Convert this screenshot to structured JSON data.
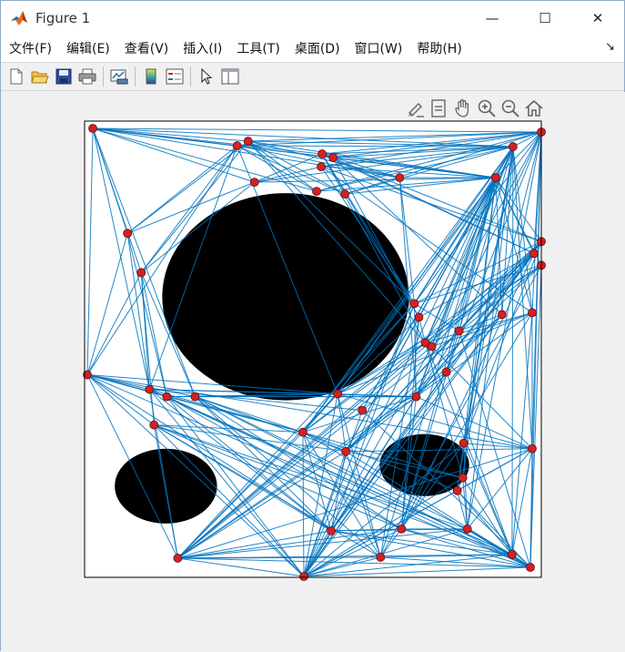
{
  "window": {
    "title": "Figure 1",
    "minimize_glyph": "—",
    "maximize_glyph": "☐",
    "close_glyph": "✕"
  },
  "menu": {
    "items": [
      "文件(F)",
      "编辑(E)",
      "查看(V)",
      "插入(I)",
      "工具(T)",
      "桌面(D)",
      "窗口(W)",
      "帮助(H)"
    ],
    "corner_glyph": "↘"
  },
  "toolbar": {
    "buttons": [
      "new-figure-icon",
      "open-file-icon",
      "save-icon",
      "print-icon",
      "link-plot-icon",
      "colorbar-icon",
      "legend-icon",
      "pointer-icon",
      "property-inspector-icon"
    ]
  },
  "axes_toolbar": {
    "buttons": [
      "brush-icon",
      "data-tips-icon",
      "pan-hand-icon",
      "zoom-in-icon",
      "zoom-out-icon",
      "home-icon"
    ]
  },
  "chart_data": {
    "type": "scatter",
    "title": "",
    "xlabel": "",
    "ylabel": "",
    "xlim": [
      0,
      100
    ],
    "ylim": [
      0,
      100
    ],
    "grid": false,
    "edge_color": "#0072bd",
    "node_color": "#d62020",
    "obstacles": [
      {
        "cx": 44.0,
        "cy": 61.5,
        "rx": 27.0,
        "ry": 22.7
      },
      {
        "cx": 17.8,
        "cy": 20.0,
        "rx": 11.2,
        "ry": 8.2
      },
      {
        "cx": 74.4,
        "cy": 24.6,
        "rx": 9.8,
        "ry": 6.8
      }
    ],
    "nodes": [
      [
        1.8,
        98.4
      ],
      [
        33.4,
        94.6
      ],
      [
        35.8,
        95.6
      ],
      [
        52.0,
        92.8
      ],
      [
        51.8,
        90.0
      ],
      [
        54.4,
        92.0
      ],
      [
        93.8,
        94.4
      ],
      [
        100,
        97.6
      ],
      [
        37.2,
        86.6
      ],
      [
        50.8,
        84.6
      ],
      [
        57.0,
        84.0
      ],
      [
        69.0,
        87.6
      ],
      [
        90.0,
        87.6
      ],
      [
        9.4,
        75.4
      ],
      [
        12.4,
        66.8
      ],
      [
        100,
        73.6
      ],
      [
        98.4,
        71.0
      ],
      [
        100,
        68.4
      ],
      [
        72.2,
        60.0
      ],
      [
        73.2,
        57.0
      ],
      [
        98.0,
        58.0
      ],
      [
        91.4,
        57.6
      ],
      [
        74.6,
        51.4
      ],
      [
        82.0,
        54.0
      ],
      [
        0.6,
        44.4
      ],
      [
        14.2,
        41.2
      ],
      [
        18.0,
        39.6
      ],
      [
        24.2,
        39.6
      ],
      [
        55.4,
        40.2
      ],
      [
        72.6,
        39.6
      ],
      [
        15.2,
        33.4
      ],
      [
        47.8,
        31.8
      ],
      [
        57.2,
        27.6
      ],
      [
        98.0,
        28.2
      ],
      [
        83.0,
        29.4
      ],
      [
        82.8,
        21.8
      ],
      [
        81.6,
        19.0
      ],
      [
        54.0,
        10.2
      ],
      [
        69.4,
        10.6
      ],
      [
        83.8,
        10.6
      ],
      [
        20.4,
        4.2
      ],
      [
        64.8,
        4.4
      ],
      [
        93.6,
        5.0
      ],
      [
        97.6,
        2.2
      ],
      [
        48.0,
        0.2
      ],
      [
        76.0,
        50.6
      ],
      [
        79.2,
        45.0
      ],
      [
        60.8,
        36.6
      ]
    ],
    "edges": [
      [
        0,
        1
      ],
      [
        0,
        2
      ],
      [
        0,
        3
      ],
      [
        0,
        6
      ],
      [
        0,
        7
      ],
      [
        0,
        8
      ],
      [
        0,
        9
      ],
      [
        0,
        11
      ],
      [
        0,
        12
      ],
      [
        0,
        13
      ],
      [
        0,
        14
      ],
      [
        0,
        24
      ],
      [
        0,
        25
      ],
      [
        0,
        27
      ],
      [
        1,
        6
      ],
      [
        1,
        7
      ],
      [
        1,
        9
      ],
      [
        1,
        10
      ],
      [
        1,
        11
      ],
      [
        1,
        12
      ],
      [
        1,
        13
      ],
      [
        1,
        14
      ],
      [
        1,
        24
      ],
      [
        1,
        25
      ],
      [
        1,
        28
      ],
      [
        2,
        6
      ],
      [
        2,
        7
      ],
      [
        2,
        9
      ],
      [
        2,
        10
      ],
      [
        2,
        11
      ],
      [
        2,
        12
      ],
      [
        2,
        13
      ],
      [
        2,
        14
      ],
      [
        2,
        18
      ],
      [
        2,
        22
      ],
      [
        3,
        6
      ],
      [
        3,
        7
      ],
      [
        3,
        8
      ],
      [
        3,
        11
      ],
      [
        3,
        12
      ],
      [
        3,
        15
      ],
      [
        3,
        16
      ],
      [
        3,
        18
      ],
      [
        3,
        19
      ],
      [
        3,
        22
      ],
      [
        4,
        6
      ],
      [
        4,
        7
      ],
      [
        4,
        8
      ],
      [
        4,
        12
      ],
      [
        4,
        15
      ],
      [
        4,
        18
      ],
      [
        4,
        20
      ],
      [
        5,
        6
      ],
      [
        5,
        7
      ],
      [
        5,
        12
      ],
      [
        5,
        16
      ],
      [
        5,
        19
      ],
      [
        5,
        21
      ],
      [
        6,
        7
      ],
      [
        6,
        8
      ],
      [
        6,
        9
      ],
      [
        6,
        10
      ],
      [
        6,
        18
      ],
      [
        6,
        19
      ],
      [
        6,
        20
      ],
      [
        6,
        21
      ],
      [
        6,
        22
      ],
      [
        6,
        23
      ],
      [
        6,
        28
      ],
      [
        6,
        29
      ],
      [
        6,
        31
      ],
      [
        6,
        33
      ],
      [
        6,
        34
      ],
      [
        6,
        35
      ],
      [
        6,
        36
      ],
      [
        6,
        39
      ],
      [
        6,
        42
      ],
      [
        7,
        9
      ],
      [
        7,
        10
      ],
      [
        7,
        12
      ],
      [
        7,
        15
      ],
      [
        7,
        16
      ],
      [
        7,
        18
      ],
      [
        7,
        20
      ],
      [
        7,
        22
      ],
      [
        7,
        29
      ],
      [
        7,
        33
      ],
      [
        7,
        34
      ],
      [
        7,
        39
      ],
      [
        7,
        43
      ],
      [
        8,
        12
      ],
      [
        8,
        13
      ],
      [
        8,
        14
      ],
      [
        9,
        12
      ],
      [
        10,
        12
      ],
      [
        11,
        12
      ],
      [
        11,
        18
      ],
      [
        11,
        29
      ],
      [
        12,
        15
      ],
      [
        12,
        16
      ],
      [
        12,
        17
      ],
      [
        12,
        18
      ],
      [
        12,
        19
      ],
      [
        12,
        20
      ],
      [
        12,
        21
      ],
      [
        12,
        22
      ],
      [
        12,
        23
      ],
      [
        12,
        28
      ],
      [
        12,
        29
      ],
      [
        12,
        31
      ],
      [
        12,
        32
      ],
      [
        12,
        34
      ],
      [
        12,
        35
      ],
      [
        12,
        38
      ],
      [
        12,
        41
      ],
      [
        12,
        44
      ],
      [
        13,
        24
      ],
      [
        13,
        25
      ],
      [
        13,
        26
      ],
      [
        14,
        24
      ],
      [
        14,
        25
      ],
      [
        14,
        26
      ],
      [
        14,
        27
      ],
      [
        14,
        30
      ],
      [
        15,
        18
      ],
      [
        15,
        22
      ],
      [
        15,
        23
      ],
      [
        15,
        29
      ],
      [
        15,
        32
      ],
      [
        15,
        34
      ],
      [
        15,
        37
      ],
      [
        15,
        44
      ],
      [
        16,
        19
      ],
      [
        16,
        23
      ],
      [
        16,
        29
      ],
      [
        16,
        31
      ],
      [
        16,
        38
      ],
      [
        16,
        40
      ],
      [
        17,
        18
      ],
      [
        17,
        22
      ],
      [
        17,
        28
      ],
      [
        17,
        32
      ],
      [
        17,
        41
      ],
      [
        17,
        43
      ],
      [
        18,
        23
      ],
      [
        18,
        29
      ],
      [
        18,
        31
      ],
      [
        18,
        37
      ],
      [
        18,
        40
      ],
      [
        18,
        44
      ],
      [
        19,
        22
      ],
      [
        19,
        28
      ],
      [
        19,
        32
      ],
      [
        19,
        38
      ],
      [
        19,
        41
      ],
      [
        20,
        22
      ],
      [
        20,
        29
      ],
      [
        20,
        33
      ],
      [
        20,
        38
      ],
      [
        20,
        42
      ],
      [
        21,
        23
      ],
      [
        21,
        29
      ],
      [
        21,
        32
      ],
      [
        21,
        37
      ],
      [
        21,
        44
      ],
      [
        22,
        28
      ],
      [
        22,
        31
      ],
      [
        22,
        35
      ],
      [
        22,
        40
      ],
      [
        22,
        42
      ],
      [
        23,
        29
      ],
      [
        23,
        32
      ],
      [
        23,
        38
      ],
      [
        23,
        43
      ],
      [
        24,
        25
      ],
      [
        24,
        26
      ],
      [
        24,
        27
      ],
      [
        24,
        28
      ],
      [
        24,
        30
      ],
      [
        24,
        31
      ],
      [
        24,
        37
      ],
      [
        24,
        40
      ],
      [
        24,
        44
      ],
      [
        24,
        33
      ],
      [
        24,
        43
      ],
      [
        25,
        28
      ],
      [
        25,
        29
      ],
      [
        25,
        31
      ],
      [
        25,
        37
      ],
      [
        25,
        40
      ],
      [
        25,
        44
      ],
      [
        25,
        43
      ],
      [
        25,
        42
      ],
      [
        26,
        28
      ],
      [
        26,
        29
      ],
      [
        26,
        31
      ],
      [
        26,
        37
      ],
      [
        26,
        38
      ],
      [
        26,
        44
      ],
      [
        26,
        42
      ],
      [
        27,
        28
      ],
      [
        27,
        29
      ],
      [
        27,
        31
      ],
      [
        27,
        32
      ],
      [
        27,
        37
      ],
      [
        27,
        38
      ],
      [
        27,
        39
      ],
      [
        27,
        43
      ],
      [
        27,
        41
      ],
      [
        28,
        29
      ],
      [
        28,
        31
      ],
      [
        28,
        32
      ],
      [
        28,
        33
      ],
      [
        28,
        40
      ],
      [
        28,
        44
      ],
      [
        28,
        20
      ],
      [
        28,
        41
      ],
      [
        29,
        31
      ],
      [
        29,
        32
      ],
      [
        29,
        33
      ],
      [
        29,
        37
      ],
      [
        29,
        38
      ],
      [
        29,
        40
      ],
      [
        29,
        44
      ],
      [
        30,
        31
      ],
      [
        30,
        32
      ],
      [
        30,
        37
      ],
      [
        30,
        38
      ],
      [
        30,
        39
      ],
      [
        30,
        40
      ],
      [
        30,
        41
      ],
      [
        30,
        44
      ],
      [
        30,
        42
      ],
      [
        31,
        32
      ],
      [
        31,
        35
      ],
      [
        31,
        36
      ],
      [
        31,
        37
      ],
      [
        31,
        40
      ],
      [
        31,
        41
      ],
      [
        31,
        44
      ],
      [
        31,
        43
      ],
      [
        32,
        33
      ],
      [
        32,
        37
      ],
      [
        32,
        40
      ],
      [
        32,
        41
      ],
      [
        32,
        44
      ],
      [
        32,
        35
      ],
      [
        32,
        43
      ],
      [
        33,
        34
      ],
      [
        33,
        36
      ],
      [
        33,
        39
      ],
      [
        33,
        42
      ],
      [
        33,
        43
      ],
      [
        33,
        44
      ],
      [
        33,
        40
      ],
      [
        34,
        36
      ],
      [
        34,
        39
      ],
      [
        34,
        41
      ],
      [
        34,
        42
      ],
      [
        34,
        44
      ],
      [
        35,
        36
      ],
      [
        35,
        39
      ],
      [
        35,
        42
      ],
      [
        35,
        44
      ],
      [
        36,
        39
      ],
      [
        36,
        42
      ],
      [
        36,
        43
      ],
      [
        36,
        44
      ],
      [
        37,
        38
      ],
      [
        37,
        39
      ],
      [
        37,
        40
      ],
      [
        37,
        42
      ],
      [
        37,
        43
      ],
      [
        37,
        44
      ],
      [
        38,
        39
      ],
      [
        38,
        40
      ],
      [
        38,
        42
      ],
      [
        38,
        43
      ],
      [
        38,
        44
      ],
      [
        39,
        40
      ],
      [
        39,
        42
      ],
      [
        39,
        43
      ],
      [
        39,
        44
      ],
      [
        40,
        41
      ],
      [
        40,
        42
      ],
      [
        40,
        43
      ],
      [
        40,
        44
      ],
      [
        41,
        42
      ],
      [
        41,
        43
      ],
      [
        41,
        44
      ],
      [
        42,
        43
      ],
      [
        42,
        44
      ],
      [
        43,
        44
      ],
      [
        45,
        6
      ],
      [
        45,
        12
      ],
      [
        45,
        15
      ],
      [
        45,
        20
      ],
      [
        45,
        44
      ],
      [
        45,
        40
      ],
      [
        45,
        33
      ],
      [
        46,
        7
      ],
      [
        46,
        12
      ],
      [
        46,
        16
      ],
      [
        46,
        40
      ],
      [
        46,
        44
      ],
      [
        46,
        42
      ],
      [
        47,
        6
      ],
      [
        47,
        12
      ],
      [
        47,
        17
      ],
      [
        47,
        25
      ],
      [
        47,
        40
      ],
      [
        47,
        44
      ],
      [
        47,
        43
      ]
    ]
  }
}
